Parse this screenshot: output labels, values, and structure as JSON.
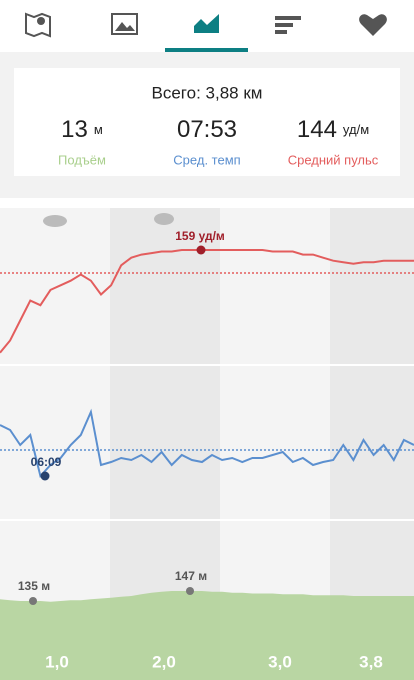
{
  "summary": {
    "total": "Всего: 3,88 км",
    "stats": [
      {
        "number": 13,
        "unit": "м",
        "caption": "Подъём",
        "color": "#a9cf8c"
      },
      {
        "number": {
          "value": 473,
          "label": "07:53"
        },
        "caption": "Сред. темп",
        "color": "#5b8fcf"
      },
      {
        "number": 144,
        "unit": "уд/м",
        "caption": "Средний пульс",
        "color": "#e35d5d"
      }
    ]
  },
  "charts": {
    "heart": {
      "color": "#e35d5d",
      "marker": {
        "value": 159,
        "label": "159 уд/м"
      },
      "values": [
        92,
        100,
        113,
        126,
        123,
        133,
        136,
        139,
        143,
        139,
        130,
        136,
        149,
        154,
        156,
        157,
        158,
        158,
        159,
        159,
        159,
        159,
        159,
        159,
        159,
        159,
        159,
        158,
        158,
        158,
        156,
        156,
        154,
        152,
        151,
        150,
        151,
        151,
        152,
        152,
        152,
        152
      ]
    },
    "pace": {
      "color": "#5b8fcf",
      "marker": {
        "value": 369,
        "label": "06:09"
      },
      "values": [
        573,
        553,
        493,
        533,
        369,
        413,
        441,
        493,
        533,
        625,
        413,
        425,
        441,
        433,
        453,
        425,
        465,
        413,
        453,
        433,
        425,
        453,
        433,
        441,
        425,
        441,
        441,
        453,
        465,
        425,
        441,
        413,
        425,
        433,
        493,
        433,
        513,
        453,
        493,
        433,
        513,
        493
      ]
    },
    "elevation": {
      "color": "#b3d39a",
      "markers": [
        {
          "value": 135,
          "label": "135 м"
        },
        {
          "value": 147,
          "label": "147 м"
        }
      ],
      "values": [
        137,
        136,
        135,
        135,
        135,
        134,
        135,
        136,
        136,
        137,
        138,
        139,
        140,
        141,
        143,
        145,
        146,
        147,
        147,
        147,
        147,
        146,
        146,
        145,
        145,
        144,
        144,
        144,
        143,
        143,
        143,
        142,
        142,
        142,
        142,
        141,
        141,
        141,
        141,
        141,
        141,
        141
      ]
    },
    "xticks": [
      {
        "value": 1,
        "label": "1,0"
      },
      {
        "value": 2,
        "label": "2,0"
      },
      {
        "value": 3,
        "label": "3,0"
      },
      {
        "value": 3.8,
        "label": "3,8"
      }
    ]
  }
}
